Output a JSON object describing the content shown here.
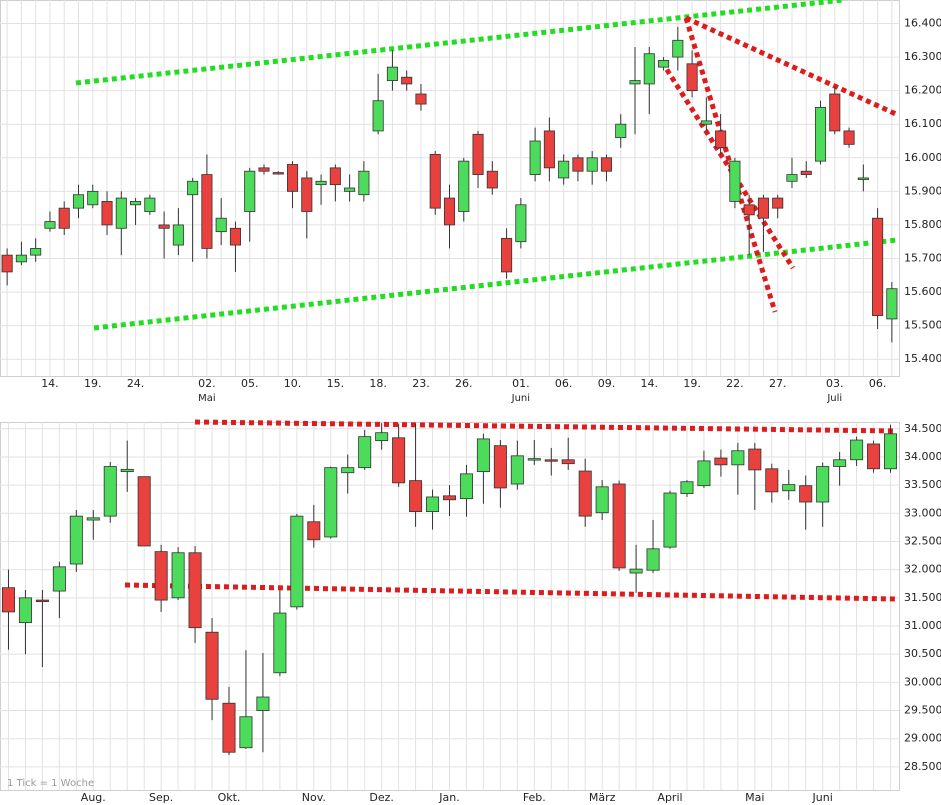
{
  "chart_data": [
    {
      "type": "candlestick",
      "categories": [
        null,
        null,
        null,
        "14.",
        null,
        null,
        "19.",
        null,
        null,
        "24.",
        null,
        null,
        null,
        null,
        "02.",
        null,
        null,
        "05.",
        null,
        null,
        "10.",
        null,
        null,
        "15.",
        null,
        null,
        "18.",
        null,
        null,
        "23.",
        null,
        null,
        "26.",
        null,
        null,
        null,
        "01.",
        null,
        null,
        "06.",
        null,
        null,
        "09.",
        null,
        null,
        "14.",
        null,
        null,
        "19.",
        null,
        null,
        "22.",
        null,
        null,
        "27.",
        null,
        null,
        null,
        "03.",
        null,
        null,
        "06.",
        null
      ],
      "months": [
        null,
        null,
        null,
        null,
        null,
        null,
        null,
        null,
        null,
        null,
        null,
        null,
        null,
        null,
        "Mai",
        null,
        null,
        null,
        null,
        null,
        null,
        null,
        null,
        null,
        null,
        null,
        null,
        null,
        null,
        null,
        null,
        null,
        null,
        null,
        null,
        null,
        "Juni",
        null,
        null,
        null,
        null,
        null,
        null,
        null,
        null,
        null,
        null,
        null,
        null,
        null,
        null,
        null,
        null,
        null,
        null,
        null,
        null,
        null,
        "Juli",
        null,
        null,
        null,
        null
      ],
      "open": [
        15.71,
        15.69,
        15.71,
        15.79,
        15.85,
        15.85,
        15.86,
        15.87,
        15.79,
        15.86,
        15.84,
        15.8,
        15.74,
        15.89,
        15.95,
        15.78,
        15.79,
        15.84,
        15.97,
        15.956,
        15.98,
        15.94,
        15.92,
        15.97,
        15.9,
        15.89,
        16.08,
        16.23,
        16.24,
        16.19,
        16.01,
        15.88,
        15.84,
        16.07,
        15.96,
        15.76,
        15.75,
        15.95,
        16.08,
        15.94,
        16.0,
        15.96,
        16.0,
        16.06,
        16.22,
        16.22,
        16.27,
        16.3,
        16.28,
        16.1,
        16.08,
        15.87,
        15.86,
        15.88,
        15.88,
        15.93,
        15.96,
        15.99,
        16.19,
        16.08,
        15.935,
        15.82,
        15.52
      ],
      "high": [
        15.73,
        15.75,
        15.76,
        15.84,
        15.87,
        15.92,
        15.92,
        15.9,
        15.9,
        15.88,
        15.89,
        15.84,
        15.85,
        15.94,
        16.01,
        15.88,
        15.81,
        15.97,
        15.98,
        15.96,
        15.99,
        15.96,
        15.95,
        15.98,
        15.95,
        15.99,
        16.25,
        16.32,
        16.26,
        16.22,
        16.02,
        15.92,
        16.0,
        16.08,
        15.99,
        15.79,
        15.88,
        16.09,
        16.12,
        16.01,
        16.01,
        16.02,
        16.01,
        16.13,
        16.33,
        16.33,
        16.3,
        16.39,
        16.32,
        16.18,
        16.13,
        16.0,
        15.89,
        15.89,
        15.89,
        16.0,
        15.99,
        16.17,
        16.21,
        16.09,
        15.98,
        15.85,
        15.63
      ],
      "low": [
        15.62,
        15.68,
        15.69,
        15.78,
        15.77,
        15.82,
        15.85,
        15.77,
        15.71,
        15.8,
        15.83,
        15.7,
        15.71,
        15.69,
        15.7,
        15.74,
        15.66,
        15.75,
        15.95,
        15.95,
        15.85,
        15.76,
        15.86,
        15.87,
        15.87,
        15.87,
        16.07,
        16.2,
        16.2,
        16.14,
        15.83,
        15.73,
        15.81,
        15.91,
        15.89,
        15.64,
        15.73,
        15.93,
        15.93,
        15.92,
        15.93,
        15.92,
        15.93,
        16.03,
        16.07,
        16.13,
        16.26,
        16.26,
        16.18,
        16.08,
        16.01,
        15.85,
        15.71,
        15.72,
        15.82,
        15.91,
        15.94,
        15.98,
        16.07,
        16.03,
        15.9,
        15.49,
        15.45
      ],
      "close": [
        15.66,
        15.71,
        15.73,
        15.81,
        15.79,
        15.89,
        15.9,
        15.8,
        15.88,
        15.87,
        15.88,
        15.79,
        15.8,
        15.93,
        15.73,
        15.82,
        15.74,
        15.96,
        15.96,
        15.955,
        15.9,
        15.84,
        15.93,
        15.92,
        15.91,
        15.96,
        16.17,
        16.27,
        16.22,
        16.16,
        15.85,
        15.8,
        15.99,
        15.95,
        15.91,
        15.66,
        15.86,
        16.05,
        15.97,
        15.99,
        15.96,
        16.0,
        15.96,
        16.1,
        16.23,
        16.31,
        16.29,
        16.35,
        16.2,
        16.11,
        16.03,
        15.99,
        15.83,
        15.82,
        15.85,
        15.95,
        15.95,
        16.15,
        16.08,
        16.04,
        15.94,
        15.53,
        15.61
      ],
      "ylim": [
        15.35,
        16.47
      ],
      "yticks": [
        {
          "value": 15.4,
          "label": "15.400"
        },
        {
          "value": 15.5,
          "label": "15.500"
        },
        {
          "value": 15.6,
          "label": "15.600"
        },
        {
          "value": 15.7,
          "label": "15.700"
        },
        {
          "value": 15.8,
          "label": "15.800"
        },
        {
          "value": 15.9,
          "label": "15.900"
        },
        {
          "value": 16.0,
          "label": "16.000"
        },
        {
          "value": 16.1,
          "label": "16.100"
        },
        {
          "value": 16.2,
          "label": "16.200"
        },
        {
          "value": 16.3,
          "label": "16.300"
        },
        {
          "value": 16.4,
          "label": "16.400"
        }
      ],
      "up_color": "#4cdb5a",
      "down_color": "#e8413e",
      "grid": true
    },
    {
      "type": "candlestick",
      "categories": [
        null,
        null,
        null,
        null,
        null,
        "Aug.",
        null,
        null,
        null,
        "Sep.",
        null,
        null,
        null,
        "Okt.",
        null,
        null,
        null,
        null,
        "Nov.",
        null,
        null,
        null,
        "Dez.",
        null,
        null,
        null,
        "Jan.",
        null,
        null,
        null,
        null,
        "Feb.",
        null,
        null,
        null,
        "März",
        null,
        null,
        null,
        "April",
        null,
        null,
        null,
        null,
        "Mai",
        null,
        null,
        null,
        "Juni",
        null,
        null,
        null,
        null
      ],
      "open": [
        31.68,
        31.06,
        31.46,
        31.62,
        32.1,
        32.88,
        32.95,
        33.74,
        33.65,
        32.32,
        31.5,
        32.3,
        30.89,
        29.63,
        28.84,
        29.5,
        30.17,
        31.34,
        32.85,
        32.58,
        33.72,
        33.81,
        34.29,
        34.34,
        33.58,
        33.03,
        33.31,
        33.26,
        33.74,
        34.2,
        33.52,
        33.96,
        33.95,
        33.95,
        33.75,
        33.01,
        33.52,
        31.94,
        31.99,
        32.4,
        33.35,
        33.49,
        33.98,
        33.86,
        34.14,
        33.79,
        33.4,
        33.49,
        33.2,
        33.83,
        33.95,
        34.23,
        33.79
      ],
      "high": [
        32.0,
        31.64,
        31.64,
        32.14,
        33.06,
        33.06,
        33.91,
        34.29,
        33.65,
        32.44,
        32.4,
        32.42,
        31.14,
        29.92,
        30.57,
        30.52,
        31.64,
        32.99,
        33.15,
        33.83,
        34.04,
        34.48,
        34.6,
        34.59,
        34.59,
        33.42,
        33.5,
        33.86,
        34.41,
        34.3,
        34.29,
        34.3,
        34.16,
        34.34,
        33.97,
        33.59,
        33.58,
        32.44,
        32.88,
        33.4,
        33.59,
        34.11,
        34.13,
        34.25,
        34.25,
        33.88,
        33.77,
        33.67,
        33.9,
        34.09,
        34.36,
        34.29,
        34.57
      ],
      "low": [
        30.58,
        30.5,
        30.27,
        31.14,
        31.96,
        32.53,
        32.83,
        33.38,
        32.42,
        31.25,
        31.46,
        30.7,
        29.33,
        28.71,
        28.82,
        28.76,
        30.11,
        31.29,
        32.39,
        32.55,
        33.35,
        33.77,
        34.13,
        33.47,
        32.76,
        32.71,
        32.95,
        32.94,
        33.17,
        33.1,
        33.42,
        33.86,
        33.67,
        33.77,
        32.76,
        32.88,
        31.98,
        31.59,
        31.94,
        32.37,
        33.29,
        33.45,
        33.65,
        33.33,
        33.06,
        33.19,
        33.24,
        32.71,
        32.76,
        33.49,
        33.84,
        33.72,
        33.72
      ],
      "close": [
        31.25,
        31.5,
        31.44,
        32.05,
        32.95,
        32.92,
        33.83,
        33.78,
        32.42,
        31.46,
        32.3,
        30.97,
        29.7,
        28.76,
        29.39,
        29.74,
        31.23,
        32.95,
        32.53,
        33.81,
        33.81,
        34.36,
        34.43,
        33.54,
        33.03,
        33.29,
        33.24,
        33.7,
        34.32,
        33.45,
        34.02,
        33.97,
        33.93,
        33.88,
        32.95,
        33.47,
        32.03,
        32.01,
        32.37,
        33.36,
        33.56,
        33.93,
        33.86,
        34.11,
        33.77,
        33.38,
        33.51,
        33.2,
        33.83,
        33.95,
        34.3,
        33.79,
        34.41
      ],
      "ylim": [
        28.09,
        34.62
      ],
      "yticks": [
        {
          "value": 28.5,
          "label": "28.500"
        },
        {
          "value": 29.0,
          "label": "29.000"
        },
        {
          "value": 29.5,
          "label": "29.500"
        },
        {
          "value": 30.0,
          "label": "30.000"
        },
        {
          "value": 30.5,
          "label": "30.500"
        },
        {
          "value": 31.0,
          "label": "31.000"
        },
        {
          "value": 31.5,
          "label": "31.500"
        },
        {
          "value": 32.0,
          "label": "32.000"
        },
        {
          "value": 32.5,
          "label": "32.500"
        },
        {
          "value": 33.0,
          "label": "33.000"
        },
        {
          "value": 33.5,
          "label": "33.500"
        },
        {
          "value": 34.0,
          "label": "34.000"
        },
        {
          "value": 34.5,
          "label": "34.500"
        }
      ],
      "up_color": "#4cdb5a",
      "down_color": "#e8413e",
      "grid": true,
      "note": "1 Tick = 1 Woche"
    }
  ]
}
